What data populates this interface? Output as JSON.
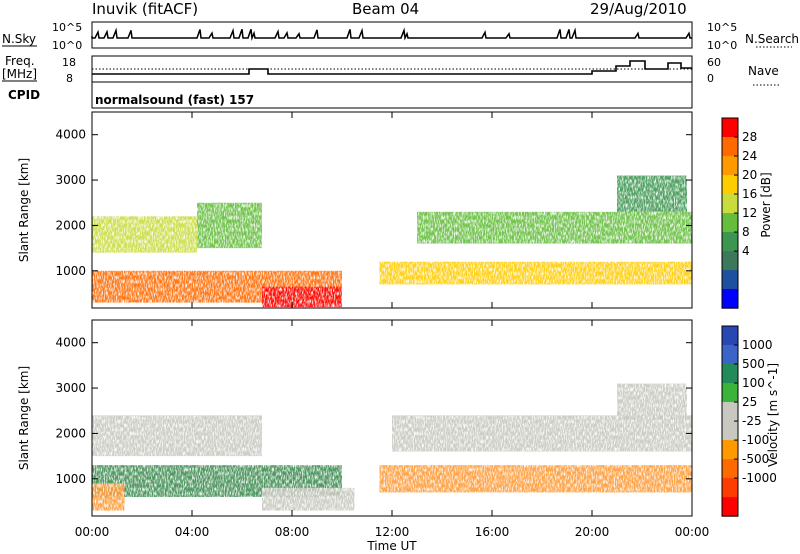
{
  "header": {
    "station": "Inuvik (fitACF)",
    "beam": "Beam 04",
    "date": "29/Aug/2010"
  },
  "strip_labels": {
    "nsky": "N.Sky",
    "nsearch": "N.Search",
    "freq": "Freq.",
    "freq_unit": "[MHz]",
    "nave": "Nave",
    "cpid": "CPID",
    "cpid_value": "normalsound (fast) 157",
    "sky_ticks": [
      "10^5",
      "10^0"
    ],
    "search_ticks": [
      "10^5",
      "10^0"
    ],
    "freq_ticks": [
      "18",
      "8"
    ],
    "nave_ticks": [
      "60",
      "0"
    ]
  },
  "time_axis": {
    "label": "Time UT",
    "ticks": [
      "00:00",
      "04:00",
      "08:00",
      "12:00",
      "16:00",
      "20:00",
      "00:00"
    ]
  },
  "chart_data": [
    {
      "type": "heatmap",
      "quantity": "Power",
      "ylabel": "Slant Range [km]",
      "yticks": [
        1000,
        2000,
        3000,
        4000
      ],
      "ylim": [
        180,
        4500
      ],
      "xlim_hours": [
        0,
        24
      ],
      "colorbar": {
        "title": "Power [dB]",
        "ticks": [
          "28",
          "24",
          "20",
          "16",
          "12",
          "8",
          "4"
        ],
        "colors": [
          "#ff0000",
          "#ff6a00",
          "#ff9900",
          "#ffcc00",
          "#c8dc3c",
          "#64be3c",
          "#3c9650",
          "#3c785a",
          "#1e50a0",
          "#0000ff"
        ]
      },
      "regions": [
        {
          "t0": 0.0,
          "t1": 10.0,
          "r0": 300,
          "r1": 1000,
          "level": 0.85
        },
        {
          "t0": 6.8,
          "t1": 10.0,
          "r0": 200,
          "r1": 650,
          "level": 0.97
        },
        {
          "t0": 0.0,
          "t1": 4.2,
          "r0": 1400,
          "r1": 2200,
          "level": 0.55
        },
        {
          "t0": 4.2,
          "t1": 6.8,
          "r0": 1500,
          "r1": 2500,
          "level": 0.45
        },
        {
          "t0": 11.5,
          "t1": 24.0,
          "r0": 700,
          "r1": 1200,
          "level": 0.65
        },
        {
          "t0": 13.0,
          "t1": 24.0,
          "r0": 1600,
          "r1": 2300,
          "level": 0.45
        },
        {
          "t0": 21.0,
          "t1": 23.8,
          "r0": 2300,
          "r1": 3100,
          "level": 0.35
        }
      ]
    },
    {
      "type": "heatmap",
      "quantity": "Velocity",
      "ylabel": "Slant Range [km]",
      "yticks": [
        1000,
        2000,
        3000,
        4000
      ],
      "ylim": [
        180,
        4500
      ],
      "xlim_hours": [
        0,
        24
      ],
      "colorbar": {
        "title": "Velocity [m s^-1]",
        "ticks": [
          "1000",
          "500",
          "100",
          "25",
          "-25",
          "-100",
          "-500",
          "-1000"
        ],
        "colors": [
          "#2846b4",
          "#3c64c8",
          "#228b5a",
          "#3cb43c",
          "#c8c8c0",
          "#c8c8c0",
          "#ff9900",
          "#ff6a00",
          "#ff3c00",
          "#ff0000"
        ]
      },
      "regions": [
        {
          "t0": 0.0,
          "t1": 10.0,
          "r0": 600,
          "r1": 1300,
          "level": "green"
        },
        {
          "t0": 0.0,
          "t1": 1.3,
          "r0": 300,
          "r1": 900,
          "level": "orange"
        },
        {
          "t0": 6.8,
          "t1": 10.5,
          "r0": 300,
          "r1": 800,
          "level": "grey"
        },
        {
          "t0": 0.0,
          "t1": 6.8,
          "r0": 1500,
          "r1": 2400,
          "level": "grey"
        },
        {
          "t0": 12.0,
          "t1": 24.0,
          "r0": 1600,
          "r1": 2400,
          "level": "grey"
        },
        {
          "t0": 11.5,
          "t1": 24.0,
          "r0": 700,
          "r1": 1300,
          "level": "orange"
        },
        {
          "t0": 21.0,
          "t1": 23.8,
          "r0": 2300,
          "r1": 3100,
          "level": "grey"
        }
      ]
    }
  ]
}
